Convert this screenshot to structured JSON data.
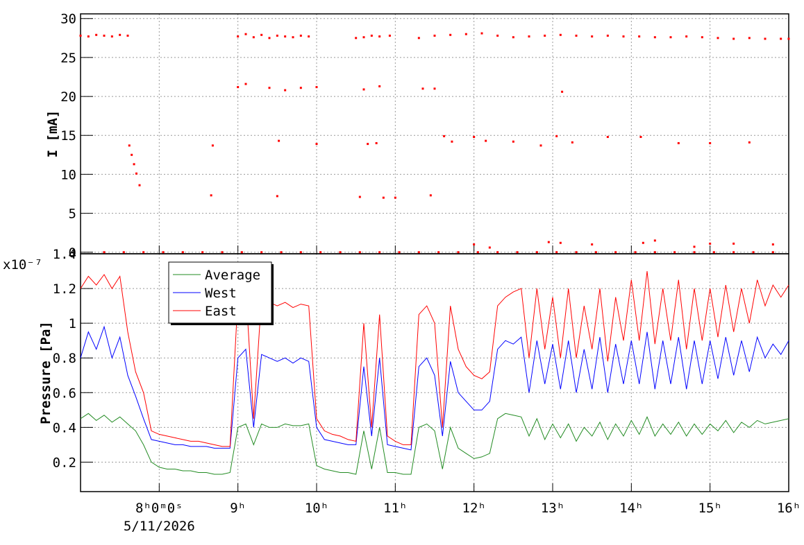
{
  "chart_data": [
    {
      "type": "scatter",
      "y_label": "I [mA]",
      "color": "#ff0000",
      "grid": true,
      "xlim": [
        7,
        16
      ],
      "ylim": [
        -0.2,
        30.6
      ],
      "yticks": [
        0,
        5,
        10,
        15,
        20,
        25,
        30
      ],
      "series": [
        {
          "color": "#ff0000",
          "x": [
            7.0,
            7.1,
            7.2,
            7.3,
            7.4,
            7.5,
            7.6,
            9.0,
            9.1,
            9.2,
            9.3,
            9.4,
            9.5,
            9.6,
            9.7,
            9.8,
            9.9,
            10.5,
            10.6,
            10.7,
            10.8,
            10.93,
            11.3,
            11.5,
            11.7,
            11.9,
            12.1,
            12.3,
            12.5,
            12.7,
            12.9,
            13.1,
            13.3,
            13.5,
            13.7,
            13.9,
            14.1,
            14.3,
            14.5,
            14.7,
            14.9,
            15.1,
            15.3,
            15.5,
            15.7,
            15.9,
            16.0,
            7.62,
            7.65,
            7.68,
            7.71,
            7.75,
            9.0,
            9.1,
            9.4,
            9.6,
            9.8,
            10.0,
            10.6,
            10.8,
            11.35,
            11.5,
            13.12,
            8.68,
            9.52,
            10.0,
            10.65,
            10.76,
            11.62,
            11.72,
            12.0,
            12.15,
            12.5,
            12.85,
            13.05,
            13.25,
            13.7,
            14.12,
            14.6,
            15.0,
            15.5,
            8.66,
            9.5,
            10.55,
            10.85,
            11.0,
            11.45,
            12.0,
            12.2,
            12.95,
            13.1,
            13.5,
            14.15,
            14.3,
            14.8,
            15.0,
            15.3,
            15.8,
            7.3,
            7.55,
            7.8,
            8.05,
            8.3,
            8.55,
            8.8,
            9.05,
            9.3,
            9.55,
            9.8,
            10.05,
            10.3,
            10.55,
            10.8,
            11.05,
            11.3,
            11.55,
            11.8,
            12.05,
            12.3,
            12.55,
            12.8,
            13.05,
            13.3,
            13.55,
            13.8,
            14.05,
            14.3,
            14.55,
            14.8,
            15.05,
            15.3,
            15.55,
            15.8
          ],
          "values": [
            27.8,
            27.7,
            27.9,
            27.8,
            27.7,
            27.9,
            27.8,
            27.7,
            28.0,
            27.6,
            27.9,
            27.5,
            27.8,
            27.7,
            27.6,
            27.8,
            27.7,
            27.5,
            27.6,
            27.8,
            27.7,
            27.8,
            27.5,
            27.8,
            27.9,
            28.0,
            28.1,
            27.8,
            27.6,
            27.7,
            27.8,
            27.9,
            27.8,
            27.7,
            27.8,
            27.7,
            27.7,
            27.6,
            27.6,
            27.7,
            27.6,
            27.5,
            27.4,
            27.5,
            27.4,
            27.4,
            27.4,
            13.7,
            12.5,
            11.3,
            10.1,
            8.6,
            21.2,
            21.6,
            21.1,
            20.8,
            21.1,
            21.2,
            20.9,
            21.3,
            21.0,
            21.0,
            20.6,
            13.7,
            14.3,
            13.9,
            13.9,
            14.0,
            14.9,
            14.2,
            14.8,
            14.3,
            14.2,
            13.7,
            14.9,
            14.1,
            14.8,
            14.8,
            14.0,
            14.0,
            14.1,
            7.3,
            7.2,
            7.1,
            7.0,
            7.0,
            7.3,
            1.0,
            0.6,
            1.3,
            1.2,
            1.0,
            1.2,
            1.5,
            0.7,
            1.1,
            1.1,
            1.0,
            0,
            0,
            0,
            0,
            0,
            0,
            0,
            0,
            0,
            0,
            0,
            0,
            0,
            0,
            0,
            0,
            0,
            0,
            0,
            0,
            0,
            0,
            0,
            0,
            0,
            0,
            0,
            0,
            0,
            0,
            0,
            0,
            0,
            0,
            0
          ]
        }
      ]
    },
    {
      "type": "line",
      "y_label": "Pressure [Pa]",
      "y_multiplier_label": "x10⁻⁷",
      "date_label": "5/11/2026",
      "grid": true,
      "legend": "upper-left",
      "xlim": [
        7,
        16
      ],
      "ylim": [
        0.03,
        1.4
      ],
      "xticks": [
        {
          "value": 8,
          "label": "8ʰ0ᵐ0ˢ"
        },
        {
          "value": 9,
          "label": "9ʰ"
        },
        {
          "value": 10,
          "label": "10ʰ"
        },
        {
          "value": 11,
          "label": "11ʰ"
        },
        {
          "value": 12,
          "label": "12ʰ"
        },
        {
          "value": 13,
          "label": "13ʰ"
        },
        {
          "value": 14,
          "label": "14ʰ"
        },
        {
          "value": 15,
          "label": "15ʰ"
        },
        {
          "value": 16,
          "label": "16ʰ"
        }
      ],
      "yticks": [
        0.2,
        0.4,
        0.6,
        0.8,
        1,
        1.2,
        1.4
      ],
      "x": [
        7.0,
        7.1,
        7.2,
        7.3,
        7.4,
        7.5,
        7.6,
        7.7,
        7.8,
        7.9,
        8.0,
        8.1,
        8.2,
        8.3,
        8.4,
        8.5,
        8.6,
        8.7,
        8.8,
        8.9,
        9.0,
        9.1,
        9.2,
        9.3,
        9.4,
        9.5,
        9.6,
        9.7,
        9.8,
        9.9,
        10.0,
        10.1,
        10.2,
        10.3,
        10.4,
        10.5,
        10.6,
        10.7,
        10.8,
        10.9,
        11.0,
        11.1,
        11.2,
        11.3,
        11.4,
        11.5,
        11.6,
        11.7,
        11.8,
        11.9,
        12.0,
        12.1,
        12.2,
        12.3,
        12.4,
        12.5,
        12.6,
        12.7,
        12.8,
        12.9,
        13.0,
        13.1,
        13.2,
        13.3,
        13.4,
        13.5,
        13.6,
        13.7,
        13.8,
        13.9,
        14.0,
        14.1,
        14.2,
        14.3,
        14.4,
        14.5,
        14.6,
        14.7,
        14.8,
        14.9,
        15.0,
        15.1,
        15.2,
        15.3,
        15.4,
        15.5,
        15.6,
        15.7,
        15.8,
        15.9,
        16.0
      ],
      "series": [
        {
          "name": "Average",
          "color": "#228b22",
          "values": [
            0.45,
            0.48,
            0.44,
            0.47,
            0.43,
            0.46,
            0.42,
            0.38,
            0.3,
            0.2,
            0.17,
            0.16,
            0.16,
            0.15,
            0.15,
            0.14,
            0.14,
            0.13,
            0.13,
            0.14,
            0.4,
            0.42,
            0.3,
            0.42,
            0.4,
            0.4,
            0.42,
            0.41,
            0.41,
            0.42,
            0.18,
            0.16,
            0.15,
            0.14,
            0.14,
            0.13,
            0.38,
            0.16,
            0.4,
            0.14,
            0.14,
            0.13,
            0.13,
            0.4,
            0.42,
            0.38,
            0.16,
            0.4,
            0.28,
            0.25,
            0.22,
            0.23,
            0.25,
            0.45,
            0.48,
            0.47,
            0.46,
            0.35,
            0.45,
            0.33,
            0.42,
            0.34,
            0.42,
            0.32,
            0.4,
            0.35,
            0.43,
            0.33,
            0.42,
            0.35,
            0.44,
            0.36,
            0.46,
            0.35,
            0.42,
            0.36,
            0.43,
            0.35,
            0.42,
            0.36,
            0.42,
            0.38,
            0.44,
            0.37,
            0.43,
            0.4,
            0.44,
            0.42,
            0.43,
            0.44,
            0.45
          ]
        },
        {
          "name": "West",
          "color": "#0000ff",
          "values": [
            0.8,
            0.95,
            0.85,
            0.98,
            0.8,
            0.92,
            0.7,
            0.58,
            0.45,
            0.33,
            0.32,
            0.31,
            0.3,
            0.3,
            0.29,
            0.29,
            0.29,
            0.28,
            0.28,
            0.28,
            0.8,
            0.85,
            0.4,
            0.82,
            0.8,
            0.78,
            0.8,
            0.77,
            0.8,
            0.78,
            0.4,
            0.33,
            0.32,
            0.31,
            0.3,
            0.3,
            0.75,
            0.35,
            0.8,
            0.3,
            0.29,
            0.28,
            0.27,
            0.75,
            0.8,
            0.7,
            0.35,
            0.78,
            0.6,
            0.55,
            0.5,
            0.5,
            0.55,
            0.85,
            0.9,
            0.88,
            0.92,
            0.6,
            0.9,
            0.65,
            0.88,
            0.62,
            0.9,
            0.6,
            0.85,
            0.62,
            0.92,
            0.6,
            0.88,
            0.65,
            0.9,
            0.65,
            0.95,
            0.62,
            0.9,
            0.65,
            0.92,
            0.62,
            0.9,
            0.65,
            0.9,
            0.68,
            0.92,
            0.7,
            0.9,
            0.72,
            0.92,
            0.8,
            0.88,
            0.82,
            0.9
          ]
        },
        {
          "name": "East",
          "color": "#ff0000",
          "values": [
            1.2,
            1.27,
            1.22,
            1.28,
            1.2,
            1.27,
            0.95,
            0.72,
            0.6,
            0.38,
            0.36,
            0.35,
            0.34,
            0.33,
            0.32,
            0.32,
            0.31,
            0.3,
            0.29,
            0.29,
            1.15,
            1.2,
            0.45,
            1.15,
            1.12,
            1.1,
            1.12,
            1.09,
            1.11,
            1.1,
            0.45,
            0.38,
            0.36,
            0.35,
            0.33,
            0.32,
            1.0,
            0.4,
            1.05,
            0.35,
            0.32,
            0.3,
            0.3,
            1.05,
            1.1,
            1.0,
            0.4,
            1.1,
            0.85,
            0.75,
            0.7,
            0.68,
            0.72,
            1.1,
            1.15,
            1.18,
            1.2,
            0.8,
            1.2,
            0.85,
            1.15,
            0.8,
            1.2,
            0.8,
            1.1,
            0.85,
            1.2,
            0.78,
            1.15,
            0.9,
            1.25,
            0.9,
            1.3,
            0.88,
            1.2,
            0.9,
            1.25,
            0.85,
            1.2,
            0.9,
            1.2,
            0.92,
            1.22,
            0.95,
            1.2,
            1.0,
            1.25,
            1.1,
            1.22,
            1.15,
            1.22
          ]
        }
      ]
    }
  ]
}
